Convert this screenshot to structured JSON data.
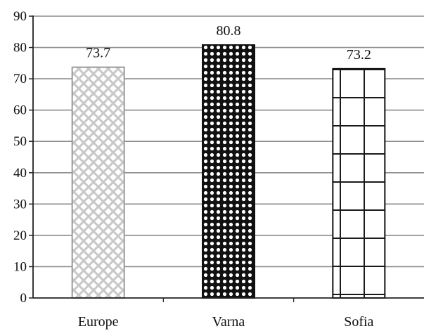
{
  "chart_data": {
    "type": "bar",
    "categories": [
      "Europe",
      "Varna",
      "Sofia"
    ],
    "values": [
      73.7,
      80.8,
      73.2
    ],
    "data_labels": [
      "73.7",
      "80.8",
      "73.2"
    ],
    "ylim": [
      0,
      90
    ],
    "yticks": [
      0,
      10,
      20,
      30,
      40,
      50,
      60,
      70,
      80,
      90
    ],
    "grid": true,
    "legend": "none",
    "bar_patterns": [
      "diagonal-crosshatch-light",
      "dense-dots",
      "large-grid"
    ],
    "colors": {
      "gridline": "#8c8c8c",
      "axis": "#222222",
      "europe_pattern": "#c8c8c8",
      "varna_pattern": "#111111",
      "sofia_pattern": "#1a1a1a"
    }
  }
}
